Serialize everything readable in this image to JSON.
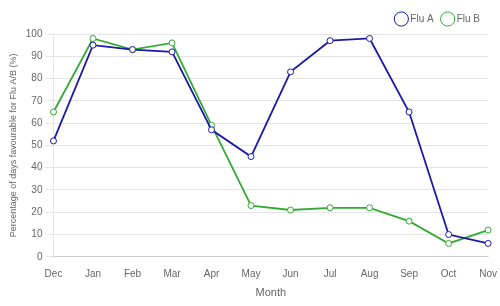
{
  "chart_data": {
    "type": "line",
    "categories": [
      "Dec",
      "Jan",
      "Feb",
      "Mar",
      "Apr",
      "May",
      "Jun",
      "Jul",
      "Aug",
      "Sep",
      "Oct",
      "Nov"
    ],
    "series": [
      {
        "name": "Flu A",
        "color": "#1a1aaa",
        "marker": "circle",
        "values": [
          52,
          95,
          93,
          92,
          57,
          45,
          83,
          97,
          98,
          65,
          10,
          6
        ]
      },
      {
        "name": "Flu B",
        "color": "#33aa33",
        "marker": "circle",
        "values": [
          65,
          98,
          93,
          96,
          59,
          23,
          21,
          22,
          22,
          16,
          6,
          12
        ]
      }
    ],
    "xlabel": "Month",
    "ylabel": "Percentage of days favourable for Flu A/B (%)",
    "ylim": [
      0,
      100
    ],
    "yticks": [
      0,
      10,
      20,
      30,
      40,
      50,
      60,
      70,
      80,
      90,
      100
    ],
    "grid": true,
    "legend": "upper right"
  }
}
